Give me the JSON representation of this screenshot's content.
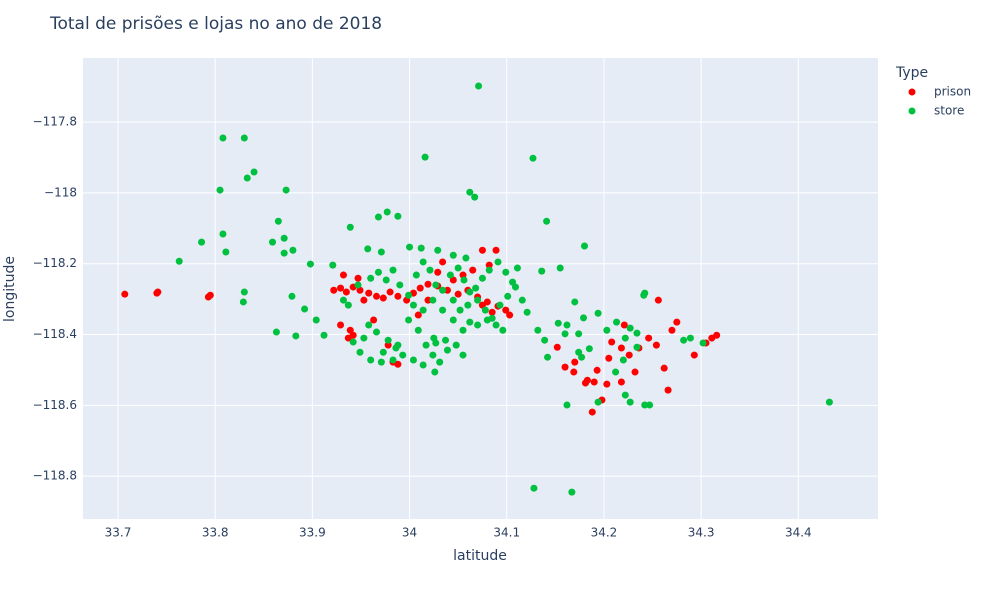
{
  "chart_data": {
    "type": "scatter",
    "title": "Total de prisões e lojas no ano de 2018",
    "x_label": "latitude",
    "y_label": "longitude",
    "legend_title": "Type",
    "grid": true,
    "xlim": [
      33.664,
      34.482
    ],
    "ylim": [
      -118.921,
      -117.619
    ],
    "xticks": [
      33.7,
      33.8,
      33.9,
      34,
      34.1,
      34.2,
      34.3,
      34.4
    ],
    "yticks": [
      {
        "value": -117.8,
        "label": "−117.8"
      },
      {
        "value": -118,
        "label": "−118"
      },
      {
        "value": -118.2,
        "label": "−118.2"
      },
      {
        "value": -118.4,
        "label": "−118.4"
      },
      {
        "value": -118.6,
        "label": "−118.6"
      },
      {
        "value": -118.8,
        "label": "−118.8"
      }
    ],
    "series": [
      {
        "name": "prison",
        "color": "#ff0000",
        "x": [
          33.707,
          33.74,
          33.741,
          33.793,
          33.795,
          33.922,
          33.929,
          33.935,
          33.942,
          33.949,
          33.958,
          33.966,
          33.973,
          33.98,
          33.988,
          33.997,
          34.004,
          34.011,
          34.019,
          34.029,
          34.039,
          34.05,
          34.06,
          34.07,
          34.08,
          34.091,
          34.099,
          34.103,
          34.085,
          34.075,
          34.045,
          34.055,
          34.065,
          34.075,
          34.089,
          34.082,
          34.029,
          34.034,
          34.019,
          34.009,
          33.983,
          33.988,
          33.978,
          33.963,
          33.939,
          33.942,
          33.937,
          33.929,
          33.947,
          33.932,
          33.953,
          34.152,
          34.16,
          34.169,
          34.183,
          34.19,
          34.188,
          34.198,
          34.193,
          34.205,
          34.208,
          34.218,
          34.221,
          34.226,
          34.232,
          34.236,
          34.246,
          34.254,
          34.256,
          34.262,
          34.266,
          34.27,
          34.275,
          34.293,
          34.305,
          34.311,
          34.316,
          34.218,
          34.203,
          34.181,
          34.17
        ],
        "y": [
          -118.286,
          -118.283,
          -118.28,
          -118.294,
          -118.289,
          -118.275,
          -118.269,
          -118.28,
          -118.266,
          -118.275,
          -118.283,
          -118.292,
          -118.297,
          -118.28,
          -118.292,
          -118.303,
          -118.283,
          -118.269,
          -118.258,
          -118.263,
          -118.275,
          -118.286,
          -118.275,
          -118.294,
          -118.308,
          -118.32,
          -118.331,
          -118.345,
          -118.337,
          -118.317,
          -118.246,
          -118.232,
          -118.218,
          -118.162,
          -118.162,
          -118.204,
          -118.224,
          -118.195,
          -118.303,
          -118.345,
          -118.478,
          -118.484,
          -118.43,
          -118.359,
          -118.388,
          -118.402,
          -118.41,
          -118.373,
          -118.241,
          -118.232,
          -118.303,
          -118.436,
          -118.492,
          -118.506,
          -118.529,
          -118.534,
          -118.619,
          -118.585,
          -118.501,
          -118.467,
          -118.421,
          -118.438,
          -118.373,
          -118.458,
          -118.506,
          -118.438,
          -118.41,
          -118.43,
          -118.303,
          -118.495,
          -118.557,
          -118.388,
          -118.365,
          -118.458,
          -118.424,
          -118.41,
          -118.402,
          -118.534,
          -118.54,
          -118.537,
          -118.478
        ]
      },
      {
        "name": "store",
        "color": "#00c040",
        "x": [
          34.071,
          33.808,
          33.83,
          34.016,
          34.127,
          33.84,
          33.833,
          33.805,
          33.873,
          34.062,
          34.067,
          33.977,
          33.968,
          33.988,
          33.865,
          34.141,
          33.939,
          33.808,
          33.871,
          33.786,
          33.859,
          34.18,
          33.88,
          33.811,
          33.871,
          34.0,
          33.957,
          33.971,
          34.012,
          33.763,
          33.898,
          33.921,
          34.155,
          34.136,
          33.83,
          33.829,
          33.879,
          33.892,
          33.904,
          33.863,
          33.883,
          33.912,
          34.17,
          34.132,
          34.139,
          34.142,
          34.153,
          34.162,
          34.179,
          34.194,
          34.174,
          34.185,
          34.174,
          34.177,
          34.203,
          34.213,
          34.227,
          34.234,
          34.222,
          34.241,
          34.242,
          34.22,
          34.212,
          34.222,
          34.227,
          34.242,
          34.247,
          34.162,
          34.194,
          34.167,
          34.128,
          34.432,
          34.289,
          34.302,
          34.282,
          34.234,
          34.16,
          33.947,
          33.96,
          33.968,
          33.976,
          33.983,
          33.99,
          33.999,
          34.007,
          34.014,
          34.021,
          34.027,
          34.034,
          34.042,
          34.05,
          34.056,
          34.062,
          34.07,
          34.078,
          34.085,
          34.093,
          34.101,
          34.109,
          34.116,
          34.121,
          33.958,
          33.966,
          33.978,
          33.986,
          33.993,
          33.983,
          33.973,
          33.953,
          33.942,
          33.999,
          34.009,
          34.017,
          34.024,
          34.031,
          34.039,
          34.048,
          34.055,
          34.062,
          34.07,
          34.08,
          34.089,
          34.096,
          34.026,
          34.014,
          34.004,
          34.025,
          34.037,
          34.045,
          34.052,
          34.06,
          34.068,
          34.075,
          34.082,
          34.091,
          34.099,
          34.106,
          34.111,
          34.045,
          34.034,
          34.024,
          34.014,
          34.004,
          34.029,
          34.045,
          34.058,
          33.937,
          33.932,
          33.949,
          33.96,
          33.971,
          33.988,
          34.027,
          34.055
        ],
        "y": [
          -117.698,
          -117.845,
          -117.845,
          -117.899,
          -117.902,
          -117.941,
          -117.958,
          -117.992,
          -117.992,
          -117.998,
          -118.012,
          -118.054,
          -118.068,
          -118.066,
          -118.08,
          -118.08,
          -118.097,
          -118.116,
          -118.128,
          -118.139,
          -118.139,
          -118.15,
          -118.162,
          -118.167,
          -118.17,
          -118.153,
          -118.158,
          -118.167,
          -118.156,
          -118.193,
          -118.201,
          -118.204,
          -118.212,
          -118.221,
          -118.28,
          -118.308,
          -118.292,
          -118.328,
          -118.359,
          -118.393,
          -118.404,
          -118.402,
          -118.308,
          -118.388,
          -118.416,
          -118.464,
          -118.368,
          -118.373,
          -118.353,
          -118.34,
          -118.398,
          -118.44,
          -118.45,
          -118.464,
          -118.388,
          -118.365,
          -118.382,
          -118.396,
          -118.41,
          -118.289,
          -118.283,
          -118.472,
          -118.506,
          -118.571,
          -118.591,
          -118.599,
          -118.599,
          -118.599,
          -118.591,
          -118.845,
          -118.834,
          -118.591,
          -118.41,
          -118.424,
          -118.416,
          -118.436,
          -118.398,
          -118.26,
          -118.241,
          -118.224,
          -118.246,
          -118.218,
          -118.26,
          -118.289,
          -118.232,
          -118.195,
          -118.218,
          -118.26,
          -118.275,
          -118.232,
          -118.212,
          -118.246,
          -118.28,
          -118.303,
          -118.331,
          -118.354,
          -118.317,
          -118.292,
          -118.266,
          -118.303,
          -118.337,
          -118.373,
          -118.393,
          -118.416,
          -118.438,
          -118.458,
          -118.472,
          -118.45,
          -118.41,
          -118.421,
          -118.359,
          -118.388,
          -118.43,
          -118.458,
          -118.478,
          -118.444,
          -118.43,
          -118.388,
          -118.365,
          -118.373,
          -118.359,
          -118.373,
          -118.388,
          -118.506,
          -118.486,
          -118.472,
          -118.41,
          -118.416,
          -118.359,
          -118.331,
          -118.317,
          -118.269,
          -118.241,
          -118.218,
          -118.195,
          -118.224,
          -118.252,
          -118.212,
          -118.303,
          -118.331,
          -118.303,
          -118.331,
          -118.317,
          -118.162,
          -118.176,
          -118.184,
          -118.317,
          -118.303,
          -118.45,
          -118.472,
          -118.478,
          -118.43,
          -118.424,
          -118.458
        ]
      }
    ]
  }
}
